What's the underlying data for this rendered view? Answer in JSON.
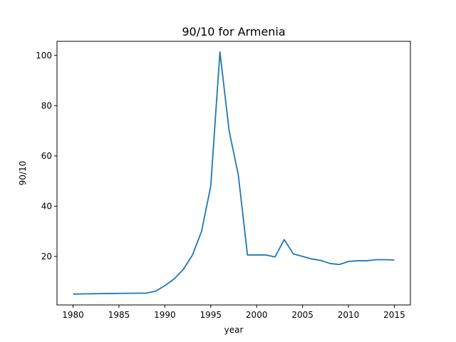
{
  "chart_data": {
    "type": "line",
    "title": "90/10 for Armenia",
    "xlabel": "year",
    "ylabel": "90/10",
    "xlim": [
      1978.25,
      2016.75
    ],
    "ylim": [
      0.7,
      105.6
    ],
    "xticks": [
      1980,
      1985,
      1990,
      1995,
      2000,
      2005,
      2010,
      2015
    ],
    "yticks": [
      20,
      40,
      60,
      80,
      100
    ],
    "grid": false,
    "series": [
      {
        "color": "#1f77b4",
        "x": [
          1980,
          1981,
          1982,
          1983,
          1984,
          1985,
          1986,
          1987,
          1988,
          1989,
          1990,
          1991,
          1992,
          1993,
          1994,
          1995,
          1996,
          1997,
          1998,
          1999,
          2000,
          2001,
          2002,
          2003,
          2004,
          2005,
          2006,
          2007,
          2008,
          2009,
          2010,
          2011,
          2012,
          2013,
          2014,
          2015
        ],
        "y": [
          5.0,
          5.1,
          5.15,
          5.2,
          5.25,
          5.3,
          5.35,
          5.38,
          5.4,
          6.2,
          8.4,
          11.0,
          14.8,
          20.5,
          30.0,
          48.0,
          101.4,
          70.0,
          52.5,
          20.6,
          20.6,
          20.6,
          19.8,
          26.7,
          21.0,
          20.0,
          19.0,
          18.4,
          17.2,
          16.8,
          18.0,
          18.3,
          18.3,
          18.7,
          18.7,
          18.6
        ]
      }
    ]
  }
}
